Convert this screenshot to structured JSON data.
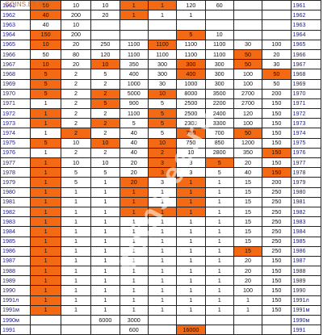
{
  "watermark_url": "COINS.EE.RU",
  "watermark_big": "coins.ee.ru",
  "colors": {
    "highlight": "#f46a14",
    "year_text": "#1a1a8c",
    "grid": "#222222"
  },
  "rows": [
    {
      "year": "1961",
      "cells": [
        [
          "50",
          "o"
        ],
        [
          "10",
          ""
        ],
        [
          "10",
          ""
        ],
        [
          "1",
          "o"
        ],
        [
          "1",
          "o"
        ],
        [
          "120",
          ""
        ],
        [
          "60",
          ""
        ]
      ]
    },
    {
      "year": "1962",
      "cells": [
        [
          "40",
          "o"
        ],
        [
          "200",
          ""
        ],
        [
          "20",
          ""
        ],
        [
          "1",
          "o"
        ],
        [
          "1",
          ""
        ],
        [
          "1",
          ""
        ],
        [
          "",
          ""
        ]
      ]
    },
    {
      "year": "1963",
      "cells": [
        [
          "40",
          ""
        ],
        [
          "10",
          ""
        ],
        [
          "",
          ""
        ],
        [
          "",
          ""
        ],
        [
          "",
          ""
        ],
        [
          "",
          ""
        ],
        [
          "",
          ""
        ]
      ]
    },
    {
      "year": "1964",
      "cells": [
        [
          "150",
          "o"
        ],
        [
          "200",
          ""
        ],
        [
          "",
          ""
        ],
        [
          "",
          ""
        ],
        [
          "",
          ""
        ],
        [
          "5",
          "o"
        ],
        [
          "10",
          ""
        ]
      ]
    },
    {
      "year": "1965",
      "cells": [
        [
          "10",
          "o"
        ],
        [
          "20",
          ""
        ],
        [
          "250",
          ""
        ],
        [
          "1100",
          ""
        ],
        [
          "1100",
          "o"
        ],
        [
          "1100",
          ""
        ],
        [
          "1100",
          ""
        ],
        [
          "30",
          ""
        ],
        [
          "100",
          ""
        ]
      ]
    },
    {
      "year": "1966",
      "cells": [
        [
          "50",
          ""
        ],
        [
          "80",
          ""
        ],
        [
          "120",
          ""
        ],
        [
          "1100",
          ""
        ],
        [
          "1100",
          ""
        ],
        [
          "1100",
          ""
        ],
        [
          "1100",
          ""
        ],
        [
          "50",
          "o"
        ],
        [
          "20",
          ""
        ]
      ]
    },
    {
      "year": "1967",
      "cells": [
        [
          "10",
          "o"
        ],
        [
          "20",
          ""
        ],
        [
          "10",
          "o"
        ],
        [
          "350",
          ""
        ],
        [
          "300",
          ""
        ],
        [
          "300",
          "o"
        ],
        [
          "300",
          ""
        ],
        [
          "50",
          "o"
        ],
        [
          "30",
          ""
        ]
      ]
    },
    {
      "year": "1968",
      "cells": [
        [
          "5",
          "o"
        ],
        [
          "2",
          ""
        ],
        [
          "5",
          ""
        ],
        [
          "400",
          ""
        ],
        [
          "300",
          ""
        ],
        [
          "400",
          "o"
        ],
        [
          "300",
          ""
        ],
        [
          "100",
          ""
        ],
        [
          "50",
          "o"
        ]
      ]
    },
    {
      "year": "1969",
      "cells": [
        [
          "5",
          "o"
        ],
        [
          "2",
          ""
        ],
        [
          "2",
          ""
        ],
        [
          "1000",
          ""
        ],
        [
          "30",
          ""
        ],
        [
          "1000",
          ""
        ],
        [
          "300",
          ""
        ],
        [
          "100",
          ""
        ],
        [
          "50",
          ""
        ]
      ]
    },
    {
      "year": "1970",
      "cells": [
        [
          "5",
          "o"
        ],
        [
          "2",
          ""
        ],
        [
          "2",
          "o"
        ],
        [
          "5000",
          ""
        ],
        [
          "10",
          "o"
        ],
        [
          "8000",
          ""
        ],
        [
          "3500",
          ""
        ],
        [
          "2700",
          ""
        ],
        [
          "200",
          ""
        ]
      ]
    },
    {
      "year": "1971",
      "cells": [
        [
          "1",
          ""
        ],
        [
          "2",
          ""
        ],
        [
          "5",
          "o"
        ],
        [
          "900",
          ""
        ],
        [
          "5",
          ""
        ],
        [
          "2500",
          ""
        ],
        [
          "2200",
          ""
        ],
        [
          "2700",
          ""
        ],
        [
          "150",
          ""
        ]
      ]
    },
    {
      "year": "1972",
      "cells": [
        [
          "1",
          "o"
        ],
        [
          "2",
          ""
        ],
        [
          "2",
          ""
        ],
        [
          "1100",
          ""
        ],
        [
          "5",
          "o"
        ],
        [
          "2500",
          ""
        ],
        [
          "2400",
          ""
        ],
        [
          "120",
          ""
        ],
        [
          "150",
          ""
        ]
      ]
    },
    {
      "year": "1973",
      "cells": [
        [
          "1",
          "o"
        ],
        [
          "2",
          ""
        ],
        [
          "2",
          "o"
        ],
        [
          "5",
          ""
        ],
        [
          "5",
          "o"
        ],
        [
          "2300",
          ""
        ],
        [
          "3300",
          ""
        ],
        [
          "100",
          ""
        ],
        [
          "150",
          ""
        ]
      ]
    },
    {
      "year": "1974",
      "cells": [
        [
          "1",
          ""
        ],
        [
          "2",
          "o"
        ],
        [
          "2",
          ""
        ],
        [
          "40",
          ""
        ],
        [
          "5",
          ""
        ],
        [
          "700",
          "o"
        ],
        [
          "700",
          ""
        ],
        [
          "50",
          "o"
        ],
        [
          "150",
          ""
        ]
      ]
    },
    {
      "year": "1975",
      "cells": [
        [
          "5",
          "o"
        ],
        [
          "10",
          ""
        ],
        [
          "10",
          "o"
        ],
        [
          "40",
          ""
        ],
        [
          "10",
          "o"
        ],
        [
          "750",
          ""
        ],
        [
          "850",
          ""
        ],
        [
          "1200",
          ""
        ],
        [
          "150",
          ""
        ]
      ]
    },
    {
      "year": "1976",
      "cells": [
        [
          "1",
          ""
        ],
        [
          "2",
          ""
        ],
        [
          "2",
          ""
        ],
        [
          "40",
          ""
        ],
        [
          "2",
          "o"
        ],
        [
          "10",
          ""
        ],
        [
          "2800",
          ""
        ],
        [
          "350",
          ""
        ],
        [
          "150",
          "o"
        ]
      ]
    },
    {
      "year": "1977",
      "cells": [
        [
          "1",
          "o"
        ],
        [
          "10",
          ""
        ],
        [
          "10",
          ""
        ],
        [
          "20",
          ""
        ],
        [
          "3",
          "o"
        ],
        [
          "3",
          ""
        ],
        [
          "5",
          "o"
        ],
        [
          "20",
          ""
        ],
        [
          "150",
          ""
        ]
      ]
    },
    {
      "year": "1978",
      "cells": [
        [
          "1",
          "o"
        ],
        [
          "5",
          ""
        ],
        [
          "5",
          ""
        ],
        [
          "20",
          ""
        ],
        [
          "3",
          "o"
        ],
        [
          "3",
          ""
        ],
        [
          "5",
          ""
        ],
        [
          "40",
          ""
        ],
        [
          "150",
          "o"
        ]
      ]
    },
    {
      "year": "1979",
      "cells": [
        [
          "1",
          "o"
        ],
        [
          "5",
          ""
        ],
        [
          "1",
          ""
        ],
        [
          "20",
          "o"
        ],
        [
          "3",
          ""
        ],
        [
          "1",
          "o"
        ],
        [
          "1",
          ""
        ],
        [
          "15",
          ""
        ],
        [
          "200",
          ""
        ]
      ]
    },
    {
      "year": "1980",
      "cells": [
        [
          "1",
          "o"
        ],
        [
          "1",
          ""
        ],
        [
          "1",
          ""
        ],
        [
          "1",
          "o"
        ],
        [
          "1",
          ""
        ],
        [
          "1",
          "o"
        ],
        [
          "1",
          ""
        ],
        [
          "15",
          ""
        ],
        [
          "250",
          ""
        ]
      ]
    },
    {
      "year": "1981",
      "cells": [
        [
          "1",
          "o"
        ],
        [
          "1",
          ""
        ],
        [
          "1",
          ""
        ],
        [
          "1",
          "o"
        ],
        [
          "1",
          ""
        ],
        [
          "1",
          "o"
        ],
        [
          "1",
          ""
        ],
        [
          "15",
          ""
        ],
        [
          "250",
          ""
        ]
      ]
    },
    {
      "year": "1982",
      "cells": [
        [
          "1",
          "o"
        ],
        [
          "1",
          ""
        ],
        [
          "1",
          ""
        ],
        [
          "1",
          "o"
        ],
        [
          "1",
          "o"
        ],
        [
          "1",
          "o"
        ],
        [
          "1",
          ""
        ],
        [
          "15",
          ""
        ],
        [
          "250",
          ""
        ]
      ]
    },
    {
      "year": "1983",
      "cells": [
        [
          "1",
          "o"
        ],
        [
          "1",
          ""
        ],
        [
          "1",
          ""
        ],
        [
          "1",
          ""
        ],
        [
          "1",
          ""
        ],
        [
          "1",
          ""
        ],
        [
          "1",
          ""
        ],
        [
          "15",
          ""
        ],
        [
          "250",
          ""
        ]
      ]
    },
    {
      "year": "1984",
      "cells": [
        [
          "1",
          "o"
        ],
        [
          "1",
          ""
        ],
        [
          "1",
          ""
        ],
        [
          "1",
          ""
        ],
        [
          "1",
          ""
        ],
        [
          "1",
          ""
        ],
        [
          "1",
          ""
        ],
        [
          "15",
          ""
        ],
        [
          "250",
          ""
        ]
      ]
    },
    {
      "year": "1985",
      "cells": [
        [
          "1",
          "o"
        ],
        [
          "1",
          ""
        ],
        [
          "1",
          ""
        ],
        [
          "1",
          ""
        ],
        [
          "1",
          ""
        ],
        [
          "1",
          ""
        ],
        [
          "1",
          ""
        ],
        [
          "15",
          ""
        ],
        [
          "250",
          ""
        ]
      ]
    },
    {
      "year": "1986",
      "cells": [
        [
          "1",
          "o"
        ],
        [
          "1",
          ""
        ],
        [
          "1",
          ""
        ],
        [
          "1",
          ""
        ],
        [
          "1",
          ""
        ],
        [
          "1",
          ""
        ],
        [
          "1",
          ""
        ],
        [
          "15",
          "o"
        ],
        [
          "250",
          ""
        ]
      ]
    },
    {
      "year": "1987",
      "cells": [
        [
          "1",
          "o"
        ],
        [
          "1",
          ""
        ],
        [
          "1",
          ""
        ],
        [
          "1",
          ""
        ],
        [
          "1",
          ""
        ],
        [
          "1",
          ""
        ],
        [
          "1",
          ""
        ],
        [
          "20",
          ""
        ],
        [
          "150",
          ""
        ]
      ]
    },
    {
      "year": "1988",
      "cells": [
        [
          "1",
          "o"
        ],
        [
          "1",
          ""
        ],
        [
          "1",
          ""
        ],
        [
          "1",
          ""
        ],
        [
          "1",
          ""
        ],
        [
          "1",
          ""
        ],
        [
          "1",
          ""
        ],
        [
          "20",
          ""
        ],
        [
          "150",
          ""
        ]
      ]
    },
    {
      "year": "1989",
      "cells": [
        [
          "1",
          "o"
        ],
        [
          "1",
          ""
        ],
        [
          "1",
          ""
        ],
        [
          "1",
          ""
        ],
        [
          "1",
          ""
        ],
        [
          "1",
          ""
        ],
        [
          "1",
          ""
        ],
        [
          "20",
          ""
        ],
        [
          "150",
          ""
        ]
      ]
    },
    {
      "year": "1990",
      "cells": [
        [
          "1",
          "o"
        ],
        [
          "1",
          ""
        ],
        [
          "1",
          ""
        ],
        [
          "1",
          ""
        ],
        [
          "1",
          ""
        ],
        [
          "1",
          ""
        ],
        [
          "1",
          ""
        ],
        [
          "100",
          ""
        ],
        [
          "150",
          ""
        ]
      ]
    },
    {
      "year": "1991л",
      "cells": [
        [
          "1",
          "o"
        ],
        [
          "1",
          ""
        ],
        [
          "1",
          ""
        ],
        [
          "1",
          ""
        ],
        [
          "1",
          ""
        ],
        [
          "1",
          ""
        ],
        [
          "1",
          ""
        ],
        [
          "1",
          ""
        ],
        [
          "150",
          ""
        ]
      ]
    },
    {
      "year": "1991м",
      "cells": [
        [
          "1",
          "o"
        ],
        [
          "1",
          ""
        ],
        [
          "1",
          ""
        ],
        [
          "1",
          ""
        ],
        [
          "1",
          ""
        ],
        [
          "1",
          ""
        ],
        [
          "1",
          ""
        ],
        [
          "1",
          ""
        ],
        [
          "150",
          ""
        ]
      ]
    },
    {
      "year": "1990м",
      "cells": [
        [
          "",
          ""
        ],
        [
          "",
          ""
        ],
        [
          "6000",
          ""
        ],
        [
          "3000",
          ""
        ],
        [
          "",
          ""
        ],
        [
          "",
          ""
        ],
        [
          "",
          ""
        ],
        [
          "",
          ""
        ],
        [
          "",
          ""
        ]
      ]
    },
    {
      "year": "1991",
      "cells": [
        [
          "",
          ""
        ],
        [
          "",
          ""
        ],
        [
          "",
          ""
        ],
        [
          "600",
          ""
        ],
        [
          "",
          ""
        ],
        [
          "16000",
          "o"
        ],
        [
          "",
          ""
        ],
        [
          "",
          ""
        ],
        [
          "",
          ""
        ]
      ]
    }
  ]
}
